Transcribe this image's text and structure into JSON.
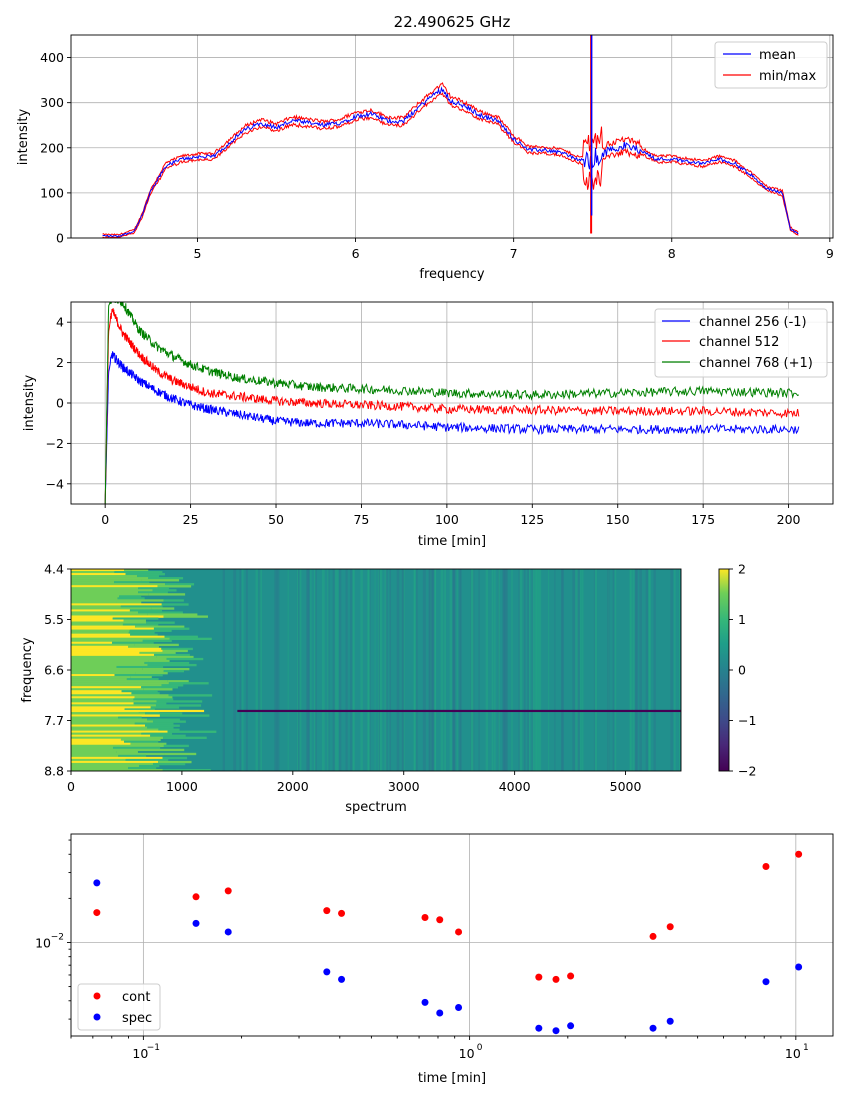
{
  "figure_title": "22.490625 GHz",
  "chart_data": [
    {
      "type": "line",
      "title": "22.490625 GHz",
      "xlabel": "frequency",
      "ylabel": "intensity",
      "xlim": [
        4.2,
        9.02
      ],
      "ylim": [
        0,
        450
      ],
      "xticks": [
        "5",
        "6",
        "7",
        "8",
        "9"
      ],
      "yticks": [
        "0",
        "100",
        "200",
        "300",
        "400"
      ],
      "grid": true,
      "legend_placement": "top-right",
      "series": [
        {
          "name": "mean",
          "color": "#0000ff"
        },
        {
          "name": "min/max",
          "color": "#ff0000"
        }
      ],
      "x": [
        4.4,
        4.5,
        4.6,
        4.65,
        4.7,
        4.8,
        4.9,
        5.0,
        5.1,
        5.2,
        5.3,
        5.4,
        5.5,
        5.6,
        5.7,
        5.8,
        5.9,
        6.0,
        6.1,
        6.2,
        6.3,
        6.4,
        6.5,
        6.55,
        6.6,
        6.7,
        6.8,
        6.9,
        7.0,
        7.1,
        7.2,
        7.3,
        7.4,
        7.45,
        7.5,
        7.55,
        7.6,
        7.7,
        7.8,
        7.9,
        8.0,
        8.1,
        8.2,
        8.3,
        8.4,
        8.5,
        8.6,
        8.7,
        8.75,
        8.8
      ],
      "y": [
        5,
        4,
        15,
        50,
        100,
        160,
        175,
        180,
        180,
        210,
        240,
        255,
        245,
        260,
        255,
        250,
        255,
        270,
        275,
        260,
        258,
        290,
        320,
        330,
        305,
        290,
        270,
        260,
        220,
        195,
        195,
        190,
        175,
        170,
        170,
        180,
        195,
        205,
        195,
        175,
        175,
        170,
        165,
        175,
        165,
        140,
        110,
        100,
        20,
        10
      ],
      "spike": {
        "x": 7.49,
        "max": 450,
        "min": 10
      }
    },
    {
      "type": "line",
      "xlabel": "time [min]",
      "ylabel": "intensity",
      "xlim": [
        -10,
        213
      ],
      "ylim": [
        -5,
        5
      ],
      "xticks": [
        "0",
        "25",
        "50",
        "75",
        "100",
        "125",
        "150",
        "175",
        "200"
      ],
      "yticks": [
        "−4",
        "−2",
        "0",
        "2",
        "4"
      ],
      "grid": true,
      "legend_placement": "top-right",
      "series": [
        {
          "name": "channel 256 (-1)",
          "color": "#0000ff",
          "x": [
            0,
            1,
            2,
            5,
            10,
            15,
            20,
            25,
            30,
            40,
            50,
            60,
            75,
            90,
            100,
            125,
            150,
            175,
            200,
            203
          ],
          "values": [
            -5,
            1.5,
            2.4,
            1.8,
            1.1,
            0.6,
            0.2,
            -0.1,
            -0.3,
            -0.6,
            -0.9,
            -1.0,
            -1.0,
            -1.1,
            -1.2,
            -1.3,
            -1.3,
            -1.3,
            -1.3,
            -1.3
          ]
        },
        {
          "name": "channel 512",
          "color": "#ff0000",
          "x": [
            0,
            1,
            2,
            5,
            10,
            15,
            20,
            25,
            30,
            40,
            50,
            60,
            75,
            90,
            100,
            125,
            150,
            175,
            200,
            203
          ],
          "values": [
            -5,
            3.5,
            4.6,
            3.5,
            2.4,
            1.6,
            1.1,
            0.8,
            0.5,
            0.3,
            0.1,
            0.0,
            -0.1,
            -0.2,
            -0.3,
            -0.35,
            -0.4,
            -0.4,
            -0.5,
            -0.5
          ]
        },
        {
          "name": "channel 768 (+1)",
          "color": "#008000",
          "x": [
            0,
            1,
            2,
            5,
            10,
            15,
            20,
            25,
            30,
            40,
            50,
            60,
            75,
            90,
            100,
            125,
            150,
            175,
            200,
            203
          ],
          "values": [
            -5,
            4.8,
            5.2,
            5.0,
            3.6,
            2.8,
            2.3,
            1.9,
            1.6,
            1.2,
            1.0,
            0.8,
            0.7,
            0.6,
            0.5,
            0.4,
            0.5,
            0.6,
            0.5,
            0.5
          ]
        }
      ]
    },
    {
      "type": "heatmap",
      "xlabel": "spectrum",
      "ylabel": "frequency",
      "xlim": [
        0,
        5500
      ],
      "ylim": [
        8.8,
        4.4
      ],
      "xticks": [
        "0",
        "1000",
        "2000",
        "3000",
        "4000",
        "5000"
      ],
      "yticks": [
        "4.4",
        "5.5",
        "6.6",
        "7.7",
        "8.8"
      ],
      "colorbar": {
        "min": -2,
        "max": 2,
        "ticks": [
          "2",
          "1",
          "0",
          "−1",
          "−2"
        ],
        "colormap": "viridis"
      },
      "features": [
        {
          "description_free": true,
          "frequency": 7.49,
          "spectrum_from": 0,
          "spectrum_to": 1200,
          "value": 2
        },
        {
          "frequency": 7.49,
          "spectrum_from": 1500,
          "spectrum_to": 5500,
          "value": -2
        }
      ]
    },
    {
      "type": "scatter",
      "xlabel": "time [min]",
      "xscale": "log",
      "yscale": "log",
      "xlim": [
        0.06,
        13
      ],
      "ylim": [
        0.0023,
        0.055
      ],
      "xticks": [
        "10",
        "10",
        "10"
      ],
      "xtick_exponents": [
        "−1",
        "0",
        "1"
      ],
      "xtick_values": [
        0.1,
        1,
        10
      ],
      "yticks": [
        "10"
      ],
      "ytick_exponents": [
        "−2"
      ],
      "ytick_values": [
        0.01
      ],
      "grid": true,
      "legend_placement": "lower-left",
      "series": [
        {
          "name": "cont",
          "color": "#ff0000",
          "x": [
            0.072,
            0.145,
            0.182,
            0.365,
            0.405,
            0.73,
            0.81,
            0.925,
            1.63,
            1.84,
            2.04,
            3.65,
            4.12,
            8.1,
            10.2
          ],
          "values": [
            0.016,
            0.0205,
            0.0225,
            0.0165,
            0.0158,
            0.0148,
            0.0143,
            0.0118,
            0.0058,
            0.0056,
            0.0059,
            0.011,
            0.0128,
            0.033,
            0.04
          ]
        },
        {
          "name": "spec",
          "color": "#0000ff",
          "x": [
            0.072,
            0.145,
            0.182,
            0.365,
            0.405,
            0.73,
            0.81,
            0.925,
            1.63,
            1.84,
            2.04,
            3.65,
            4.12,
            8.1,
            10.2
          ],
          "values": [
            0.0255,
            0.0135,
            0.0118,
            0.0063,
            0.0056,
            0.0039,
            0.0033,
            0.0036,
            0.0026,
            0.0025,
            0.0027,
            0.0026,
            0.0029,
            0.0054,
            0.0068
          ]
        }
      ]
    }
  ]
}
